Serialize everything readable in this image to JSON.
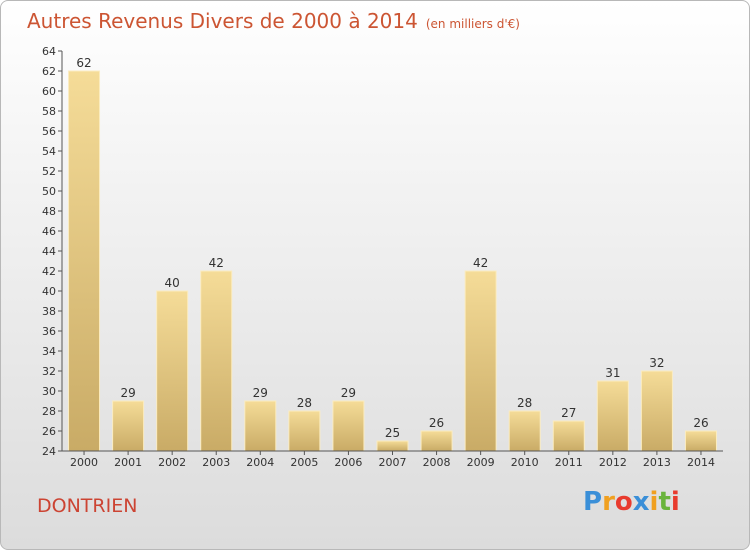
{
  "header": {
    "title": "Autres Revenus Divers de 2000 à 2014",
    "unit": "(en milliers d'€)"
  },
  "footer": {
    "town": "DONTRIEN",
    "logo_letters": [
      "P",
      "r",
      "o",
      "x",
      "i",
      "t",
      "i"
    ],
    "logo_colors": [
      "#3a8fd8",
      "#f0a020",
      "#e83b2e",
      "#3a8fd8",
      "#f0a020",
      "#6ab43c",
      "#e83b2e"
    ]
  },
  "colors": {
    "bar_light": "#f5dc98",
    "bar_dark": "#c9ab66",
    "axis": "#555555",
    "label": "#333333"
  },
  "chart_data": {
    "type": "bar",
    "title": "Autres Revenus Divers de 2000 à 2014",
    "categories": [
      "2000",
      "2001",
      "2002",
      "2003",
      "2004",
      "2005",
      "2006",
      "2007",
      "2008",
      "2009",
      "2010",
      "2011",
      "2012",
      "2013",
      "2014"
    ],
    "values": [
      62,
      29,
      40,
      42,
      29,
      28,
      29,
      25,
      26,
      42,
      28,
      27,
      31,
      32,
      26
    ],
    "ylim": [
      24,
      64
    ],
    "ytick_step": 2,
    "grid": false,
    "data_labels": true
  }
}
